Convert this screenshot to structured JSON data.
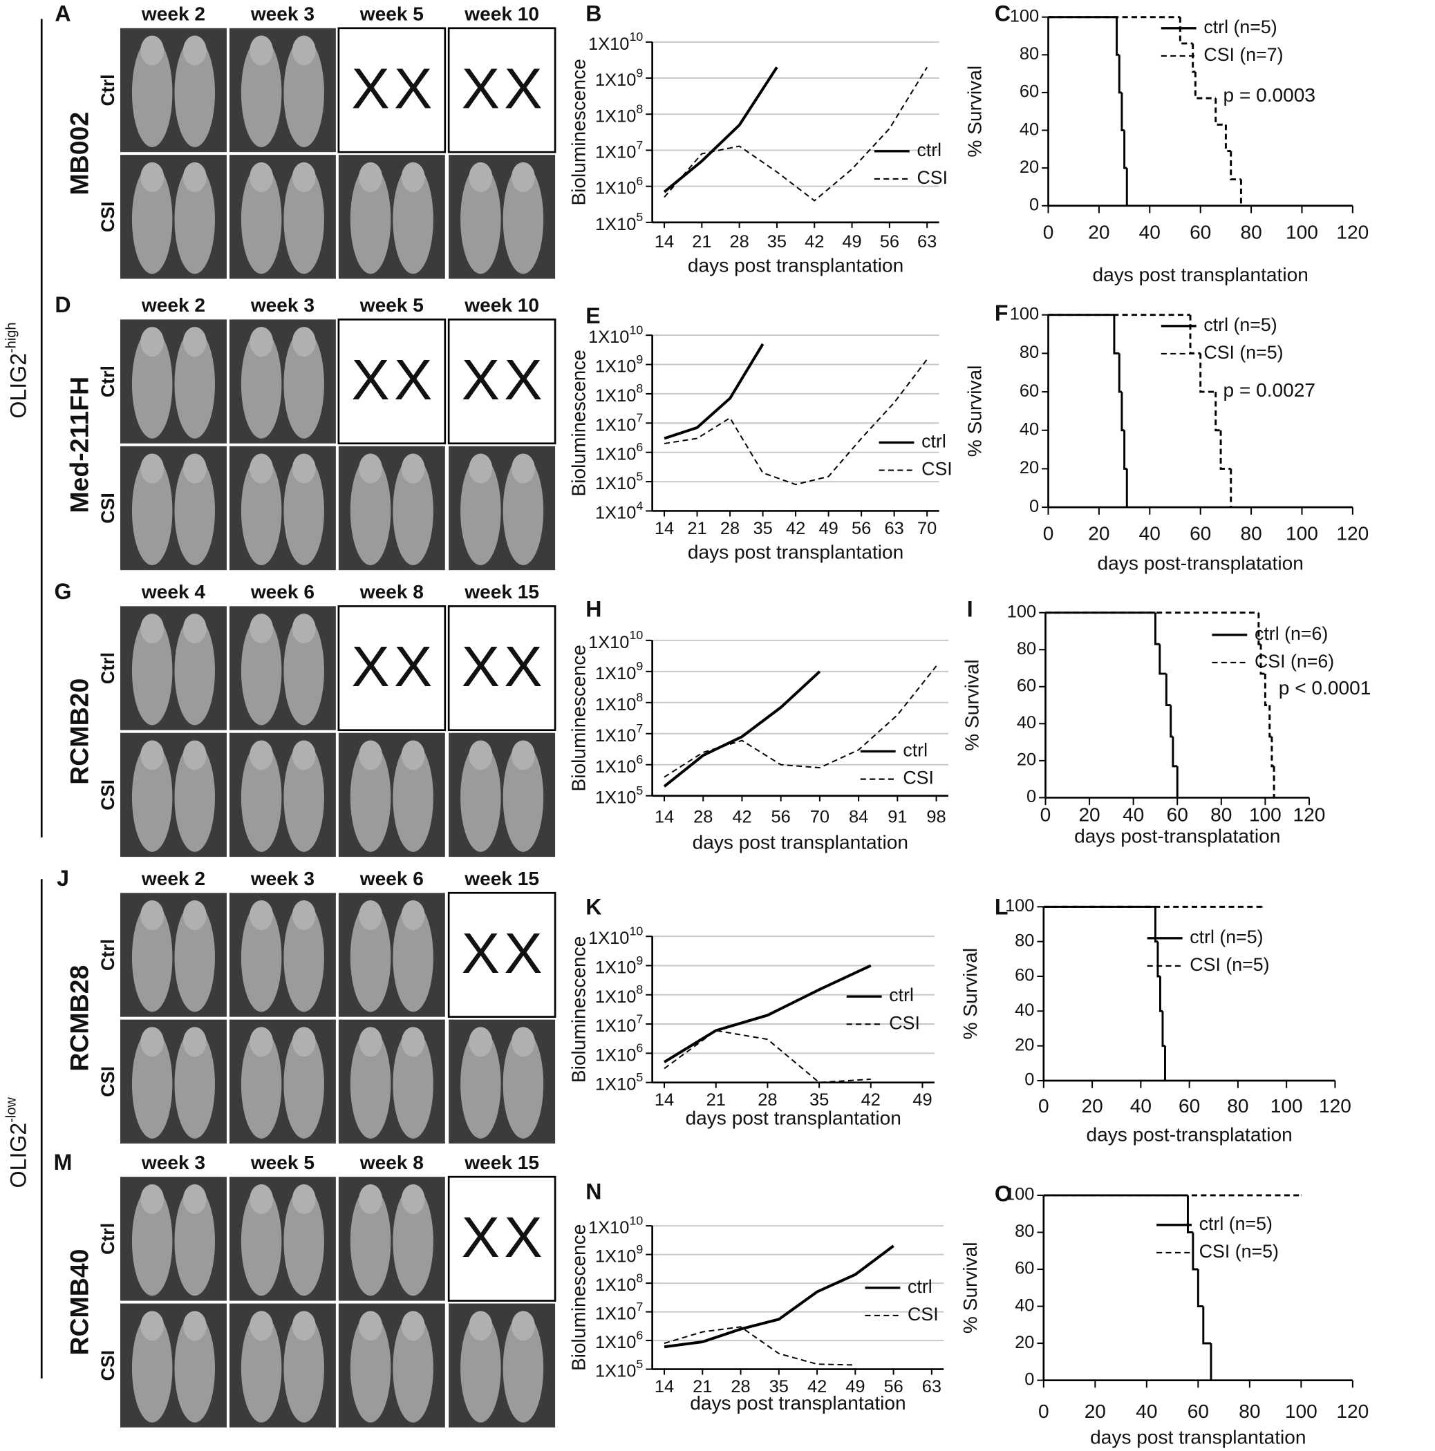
{
  "groups": [
    {
      "label": "OLIG2",
      "superscript": "-high"
    },
    {
      "label": "OLIG2",
      "superscript": "-low"
    }
  ],
  "dead_marker": "X",
  "image_panels": [
    {
      "label": "A",
      "line": "MB002",
      "weeks": [
        "week 2",
        "week 3",
        "week 5",
        "week 10"
      ],
      "rows": [
        "Ctrl",
        "CSI"
      ],
      "dead_columns": [
        2,
        3
      ]
    },
    {
      "label": "D",
      "line": "Med-211FH",
      "weeks": [
        "week 2",
        "week 3",
        "week 5",
        "week 10"
      ],
      "rows": [
        "Ctrl",
        "CSI"
      ],
      "dead_columns": [
        2,
        3
      ]
    },
    {
      "label": "G",
      "line": "RCMB20",
      "weeks": [
        "week 4",
        "week 6",
        "week 8",
        "week 15"
      ],
      "rows": [
        "Ctrl",
        "CSI"
      ],
      "dead_columns": [
        2,
        3
      ]
    },
    {
      "label": "J",
      "line": "RCMB28",
      "weeks": [
        "week 2",
        "week 3",
        "week 6",
        "week 15"
      ],
      "rows": [
        "Ctrl",
        "CSI"
      ],
      "dead_columns": [
        3
      ]
    },
    {
      "label": "M",
      "line": "RCMB40",
      "weeks": [
        "week 3",
        "week 5",
        "week 8",
        "week 15"
      ],
      "rows": [
        "Ctrl",
        "CSI"
      ],
      "dead_columns": [
        3
      ]
    }
  ],
  "chart_data": [
    {
      "type": "line",
      "panel": "B",
      "yscale": "log",
      "grid": true,
      "ylabel": "Bioluminescence",
      "xlabel": "days post transplantation",
      "ylim": [
        100000.0,
        10000000000.0
      ],
      "yticks": [
        {
          "value": 100000.0,
          "label": "1X10^5"
        },
        {
          "value": 1000000.0,
          "label": "1X10^6"
        },
        {
          "value": 10000000.0,
          "label": "1X10^7"
        },
        {
          "value": 100000000.0,
          "label": "1X10^8"
        },
        {
          "value": 1000000000.0,
          "label": "1X10^9"
        },
        {
          "value": 10000000000.0,
          "label": "1X10^10"
        }
      ],
      "categories": [
        "14",
        "21",
        "28",
        "35",
        "42",
        "49",
        "56",
        "63"
      ],
      "series": [
        {
          "name": "ctrl",
          "color": "#000000",
          "line_style": "solid",
          "values": [
            700000.0,
            5000000.0,
            50000000.0,
            2000000000.0,
            null,
            null,
            null,
            null
          ]
        },
        {
          "name": "CSI",
          "color": "#000000",
          "line_style": "dashed",
          "values": [
            500000.0,
            8000000.0,
            13000000.0,
            2500000.0,
            400000.0,
            3000000.0,
            40000000.0,
            2000000000.0
          ]
        }
      ]
    },
    {
      "type": "line",
      "panel": "E",
      "yscale": "log",
      "grid": true,
      "ylabel": "Bioluminescence",
      "xlabel": "days post transplantation",
      "ylim": [
        10000.0,
        10000000000.0
      ],
      "yticks": [
        {
          "value": 10000.0,
          "label": "1X10^4"
        },
        {
          "value": 100000.0,
          "label": "1X10^5"
        },
        {
          "value": 1000000.0,
          "label": "1X10^6"
        },
        {
          "value": 10000000.0,
          "label": "1X10^7"
        },
        {
          "value": 100000000.0,
          "label": "1X10^8"
        },
        {
          "value": 1000000000.0,
          "label": "1X10^9"
        },
        {
          "value": 10000000000.0,
          "label": "1X10^10"
        }
      ],
      "categories": [
        "14",
        "21",
        "28",
        "35",
        "42",
        "49",
        "56",
        "63",
        "70"
      ],
      "series": [
        {
          "name": "ctrl",
          "color": "#000000",
          "line_style": "solid",
          "values": [
            3000000.0,
            7000000.0,
            70000000.0,
            5000000000.0,
            null,
            null,
            null,
            null,
            null
          ]
        },
        {
          "name": "CSI",
          "color": "#000000",
          "line_style": "dashed",
          "values": [
            2000000.0,
            3000000.0,
            15000000.0,
            200000.0,
            80000.0,
            150000.0,
            3000000.0,
            50000000.0,
            1500000000.0
          ]
        }
      ]
    },
    {
      "type": "line",
      "panel": "H",
      "yscale": "log",
      "grid": true,
      "ylabel": "Bioluminescence",
      "xlabel": "days post transplantation",
      "ylim": [
        100000.0,
        10000000000.0
      ],
      "yticks": [
        {
          "value": 100000.0,
          "label": "1X10^5"
        },
        {
          "value": 1000000.0,
          "label": "1X10^6"
        },
        {
          "value": 10000000.0,
          "label": "1X10^7"
        },
        {
          "value": 100000000.0,
          "label": "1X10^8"
        },
        {
          "value": 1000000000.0,
          "label": "1X10^9"
        },
        {
          "value": 10000000000.0,
          "label": "1X10^10"
        }
      ],
      "categories": [
        "14",
        "28",
        "42",
        "56",
        "70",
        "84",
        "91",
        "98"
      ],
      "series": [
        {
          "name": "ctrl",
          "color": "#000000",
          "line_style": "solid",
          "values": [
            200000.0,
            2000000.0,
            8000000.0,
            70000000.0,
            1000000000.0,
            null,
            null,
            null
          ]
        },
        {
          "name": "CSI",
          "color": "#000000",
          "line_style": "dashed",
          "values": [
            400000.0,
            2500000.0,
            6000000.0,
            1000000.0,
            800000.0,
            3000000.0,
            40000000.0,
            1500000000.0
          ]
        }
      ]
    },
    {
      "type": "line",
      "panel": "K",
      "yscale": "log",
      "grid": true,
      "ylabel": "Bioluminescence",
      "xlabel": "days post transplantation",
      "ylim": [
        100000.0,
        10000000000.0
      ],
      "yticks": [
        {
          "value": 100000.0,
          "label": "1X10^5"
        },
        {
          "value": 1000000.0,
          "label": "1X10^6"
        },
        {
          "value": 10000000.0,
          "label": "1X10^7"
        },
        {
          "value": 100000000.0,
          "label": "1X10^8"
        },
        {
          "value": 1000000000.0,
          "label": "1X10^9"
        },
        {
          "value": 10000000000.0,
          "label": "1X10^10"
        }
      ],
      "categories": [
        "14",
        "21",
        "28",
        "35",
        "42",
        "49"
      ],
      "series": [
        {
          "name": "ctrl",
          "color": "#000000",
          "line_style": "solid",
          "values": [
            500000.0,
            6000000.0,
            20000000.0,
            150000000.0,
            1000000000.0,
            null
          ]
        },
        {
          "name": "CSI",
          "color": "#000000",
          "line_style": "dashed",
          "values": [
            300000.0,
            6000000.0,
            3000000.0,
            100000.0,
            130000.0,
            null
          ]
        }
      ]
    },
    {
      "type": "line",
      "panel": "N",
      "yscale": "log",
      "grid": true,
      "ylabel": "Bioluminescence",
      "xlabel": "days post transplantation",
      "ylim": [
        100000.0,
        10000000000.0
      ],
      "yticks": [
        {
          "value": 100000.0,
          "label": "1X10^5"
        },
        {
          "value": 1000000.0,
          "label": "1X10^6"
        },
        {
          "value": 10000000.0,
          "label": "1X10^7"
        },
        {
          "value": 100000000.0,
          "label": "1X10^8"
        },
        {
          "value": 1000000000.0,
          "label": "1X10^9"
        },
        {
          "value": 10000000000.0,
          "label": "1X10^10"
        }
      ],
      "categories": [
        "14",
        "21",
        "28",
        "35",
        "42",
        "49",
        "56",
        "63"
      ],
      "series": [
        {
          "name": "ctrl",
          "color": "#000000",
          "line_style": "solid",
          "values": [
            600000.0,
            900000.0,
            2500000.0,
            5500000.0,
            50000000.0,
            200000000.0,
            2000000000.0,
            null
          ]
        },
        {
          "name": "CSI",
          "color": "#000000",
          "line_style": "dashed",
          "values": [
            800000.0,
            2000000.0,
            3000000.0,
            350000.0,
            150000.0,
            140000.0,
            null,
            null
          ]
        }
      ]
    },
    {
      "type": "step",
      "panel": "C",
      "ylabel": "% Survival",
      "xlabel": "days post transplantation",
      "annotation": "p = 0.0003",
      "xlim": [
        0,
        120
      ],
      "xticks": [
        0,
        20,
        40,
        60,
        80,
        100,
        120
      ],
      "ylim": [
        0,
        100
      ],
      "yticks": [
        0,
        20,
        40,
        60,
        80,
        100
      ],
      "series": [
        {
          "name": "ctrl (n=5)",
          "color": "#000000",
          "line_style": "solid",
          "x": [
            0,
            27,
            28,
            29,
            30,
            31
          ],
          "values": [
            100,
            80,
            60,
            40,
            20,
            0
          ]
        },
        {
          "name": "CSI (n=7)",
          "color": "#000000",
          "line_style": "dashed",
          "x": [
            0,
            52,
            57,
            58,
            66,
            70,
            72,
            76
          ],
          "values": [
            100,
            86,
            71,
            57,
            43,
            29,
            14,
            0
          ]
        }
      ]
    },
    {
      "type": "step",
      "panel": "F",
      "ylabel": "% Survival",
      "xlabel": "days post-transplatation",
      "annotation": "p = 0.0027",
      "xlim": [
        0,
        120
      ],
      "xticks": [
        0,
        20,
        40,
        60,
        80,
        100,
        120
      ],
      "ylim": [
        0,
        100
      ],
      "yticks": [
        0,
        20,
        40,
        60,
        80,
        100
      ],
      "series": [
        {
          "name": "ctrl (n=5)",
          "color": "#000000",
          "line_style": "solid",
          "x": [
            0,
            26,
            28,
            29,
            30,
            31
          ],
          "values": [
            100,
            80,
            60,
            40,
            20,
            0
          ]
        },
        {
          "name": "CSI (n=5)",
          "color": "#000000",
          "line_style": "dashed",
          "x": [
            0,
            56,
            60,
            66,
            68,
            72
          ],
          "values": [
            100,
            80,
            60,
            40,
            20,
            0
          ]
        }
      ]
    },
    {
      "type": "step",
      "panel": "I",
      "ylabel": "% Survival",
      "xlabel": "days post-transplatation",
      "annotation": "p < 0.0001",
      "xlim": [
        0,
        120
      ],
      "xticks": [
        0,
        20,
        40,
        60,
        80,
        100,
        120
      ],
      "ylim": [
        0,
        100
      ],
      "yticks": [
        0,
        20,
        40,
        60,
        80,
        100
      ],
      "series": [
        {
          "name": "ctrl (n=6)",
          "color": "#000000",
          "line_style": "solid",
          "x": [
            0,
            50,
            52,
            55,
            57,
            58,
            60
          ],
          "values": [
            100,
            83,
            67,
            50,
            33,
            17,
            0
          ]
        },
        {
          "name": "CSI (n=6)",
          "color": "#000000",
          "line_style": "dashed",
          "x": [
            0,
            97,
            98,
            100,
            102,
            103,
            104
          ],
          "values": [
            100,
            83,
            67,
            50,
            33,
            17,
            0
          ]
        }
      ]
    },
    {
      "type": "step",
      "panel": "L",
      "ylabel": "% Survival",
      "xlabel": "days post-transplatation",
      "xlim": [
        0,
        120
      ],
      "xticks": [
        0,
        20,
        40,
        60,
        80,
        100,
        120
      ],
      "ylim": [
        0,
        100
      ],
      "yticks": [
        0,
        20,
        40,
        60,
        80,
        100
      ],
      "series": [
        {
          "name": "ctrl (n=5)",
          "color": "#000000",
          "line_style": "solid",
          "x": [
            0,
            46,
            47,
            48,
            49,
            50
          ],
          "values": [
            100,
            80,
            60,
            40,
            20,
            0
          ]
        },
        {
          "name": "CSI (n=5)",
          "color": "#000000",
          "line_style": "dashed",
          "x": [
            0,
            90
          ],
          "values": [
            100,
            100
          ]
        }
      ]
    },
    {
      "type": "step",
      "panel": "O",
      "ylabel": "% Survival",
      "xlabel": "days post transplantation",
      "xlim": [
        0,
        120
      ],
      "xticks": [
        0,
        20,
        40,
        60,
        80,
        100,
        120
      ],
      "ylim": [
        0,
        100
      ],
      "yticks": [
        0,
        20,
        40,
        60,
        80,
        100
      ],
      "series": [
        {
          "name": "ctrl (n=5)",
          "color": "#000000",
          "line_style": "solid",
          "x": [
            0,
            56,
            58,
            60,
            62,
            65
          ],
          "values": [
            100,
            80,
            60,
            40,
            20,
            0
          ]
        },
        {
          "name": "CSI (n=5)",
          "color": "#000000",
          "line_style": "dashed",
          "x": [
            0,
            100
          ],
          "values": [
            100,
            100
          ]
        }
      ]
    }
  ]
}
